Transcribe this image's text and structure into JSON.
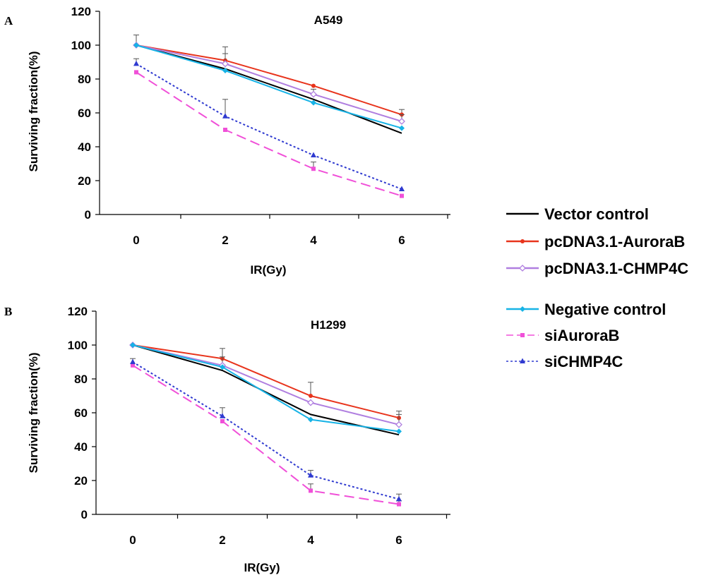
{
  "chart_data": [
    {
      "type": "line",
      "panel": "A",
      "title": "A549",
      "xlabel": "IR(Gy)",
      "ylabel": "Surviving fraction(%)",
      "x": [
        0,
        2,
        4,
        6
      ],
      "ylim": [
        0,
        120
      ],
      "yticks": [
        0,
        20,
        40,
        60,
        80,
        100,
        120
      ],
      "series": [
        {
          "name": "Vector control",
          "color": "#000000",
          "dash": "solid",
          "marker": "none",
          "values": [
            100,
            86,
            68,
            48
          ],
          "err": [
            0,
            0,
            0,
            0
          ]
        },
        {
          "name": "pcDNA3.1-AuroraB",
          "color": "#e8341c",
          "dash": "solid",
          "marker": "dot",
          "values": [
            100,
            91,
            76,
            59
          ],
          "err": [
            6,
            8,
            0,
            3
          ]
        },
        {
          "name": "pcDNA3.1-CHMP4C",
          "color": "#b07fe0",
          "dash": "solid",
          "marker": "diamond",
          "values": [
            100,
            89,
            71,
            55
          ],
          "err": [
            0,
            6,
            3,
            4
          ]
        },
        {
          "name": "Negative control",
          "color": "#17b3e6",
          "dash": "solid",
          "marker": "diamond-filled",
          "values": [
            100,
            85,
            66,
            51
          ],
          "err": [
            0,
            0,
            0,
            0
          ]
        },
        {
          "name": "siAuroraB",
          "color": "#f050d8",
          "dash": "longdash",
          "marker": "square",
          "values": [
            84,
            50,
            27,
            11
          ],
          "err": [
            0,
            0,
            4,
            0
          ]
        },
        {
          "name": "siCHMP4C",
          "color": "#2f3ad0",
          "dash": "dot",
          "marker": "triangle",
          "values": [
            89,
            58,
            35,
            15
          ],
          "err": [
            3,
            10,
            0,
            0
          ]
        }
      ]
    },
    {
      "type": "line",
      "panel": "B",
      "title": "H1299",
      "xlabel": "IR(Gy)",
      "ylabel": "Surviving fraction(%)",
      "x": [
        0,
        2,
        4,
        6
      ],
      "ylim": [
        0,
        120
      ],
      "yticks": [
        0,
        20,
        40,
        60,
        80,
        100,
        120
      ],
      "series": [
        {
          "name": "Vector control",
          "color": "#000000",
          "dash": "solid",
          "marker": "none",
          "values": [
            100,
            85,
            59,
            47
          ],
          "err": [
            0,
            0,
            0,
            0
          ]
        },
        {
          "name": "pcDNA3.1-AuroraB",
          "color": "#e8341c",
          "dash": "solid",
          "marker": "dot",
          "values": [
            100,
            92,
            70,
            57
          ],
          "err": [
            0,
            6,
            8,
            4
          ]
        },
        {
          "name": "pcDNA3.1-CHMP4C",
          "color": "#b07fe0",
          "dash": "solid",
          "marker": "diamond",
          "values": [
            100,
            88,
            66,
            53
          ],
          "err": [
            0,
            5,
            0,
            6
          ]
        },
        {
          "name": "Negative control",
          "color": "#17b3e6",
          "dash": "solid",
          "marker": "diamond-filled",
          "values": [
            100,
            87,
            56,
            49
          ],
          "err": [
            0,
            0,
            0,
            0
          ]
        },
        {
          "name": "siAuroraB",
          "color": "#f050d8",
          "dash": "longdash",
          "marker": "square",
          "values": [
            88,
            55,
            14,
            6
          ],
          "err": [
            0,
            0,
            4,
            2
          ]
        },
        {
          "name": "siCHMP4C",
          "color": "#2f3ad0",
          "dash": "dot",
          "marker": "triangle",
          "values": [
            90,
            58,
            23,
            9
          ],
          "err": [
            2,
            5,
            3,
            3
          ]
        }
      ]
    }
  ]
}
